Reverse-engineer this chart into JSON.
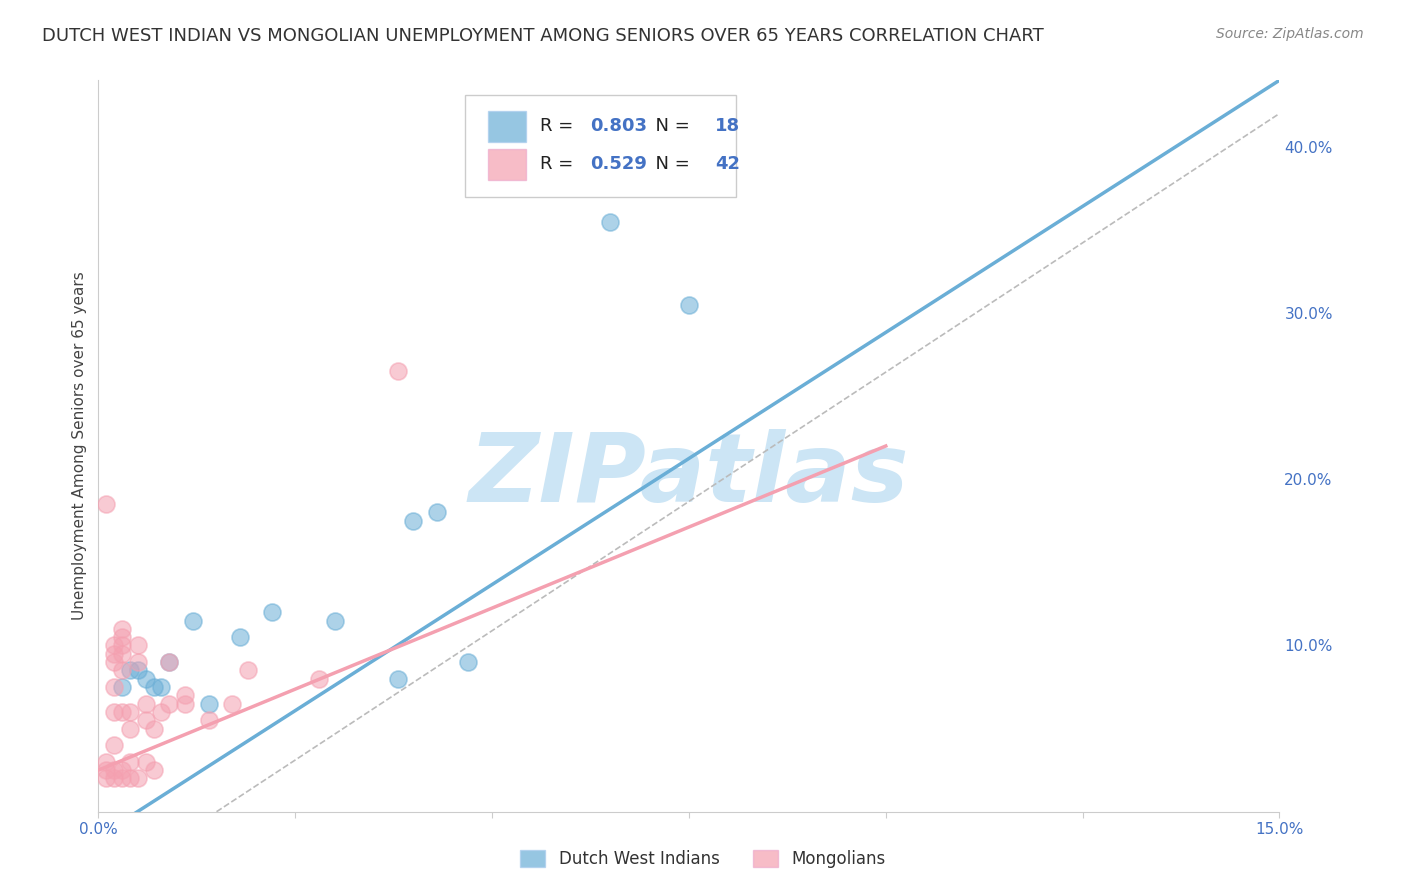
{
  "title": "DUTCH WEST INDIAN VS MONGOLIAN UNEMPLOYMENT AMONG SENIORS OVER 65 YEARS CORRELATION CHART",
  "source": "Source: ZipAtlas.com",
  "ylabel": "Unemployment Among Seniors over 65 years",
  "xlim": [
    0.0,
    0.15
  ],
  "ylim": [
    0.0,
    0.44
  ],
  "xticks": [
    0.0,
    0.025,
    0.05,
    0.075,
    0.1,
    0.125,
    0.15
  ],
  "xtick_labels": [
    "0.0%",
    "",
    "",
    "",
    "",
    "",
    "15.0%"
  ],
  "yticks_right": [
    0.1,
    0.2,
    0.3,
    0.4
  ],
  "ytick_labels_right": [
    "10.0%",
    "20.0%",
    "30.0%",
    "40.0%"
  ],
  "blue_color": "#6aaed6",
  "pink_color": "#f4a0b0",
  "blue_edge_color": "#5090c0",
  "pink_edge_color": "#e07090",
  "blue_label": "Dutch West Indians",
  "pink_label": "Mongolians",
  "R_blue": "0.803",
  "N_blue": "18",
  "R_pink": "0.529",
  "N_pink": "42",
  "blue_scatter": [
    [
      0.003,
      0.075
    ],
    [
      0.004,
      0.085
    ],
    [
      0.005,
      0.085
    ],
    [
      0.006,
      0.08
    ],
    [
      0.007,
      0.075
    ],
    [
      0.008,
      0.075
    ],
    [
      0.009,
      0.09
    ],
    [
      0.012,
      0.115
    ],
    [
      0.014,
      0.065
    ],
    [
      0.018,
      0.105
    ],
    [
      0.022,
      0.12
    ],
    [
      0.03,
      0.115
    ],
    [
      0.038,
      0.08
    ],
    [
      0.04,
      0.175
    ],
    [
      0.043,
      0.18
    ],
    [
      0.047,
      0.09
    ],
    [
      0.065,
      0.355
    ],
    [
      0.075,
      0.305
    ]
  ],
  "pink_scatter": [
    [
      0.001,
      0.02
    ],
    [
      0.001,
      0.025
    ],
    [
      0.001,
      0.03
    ],
    [
      0.001,
      0.185
    ],
    [
      0.002,
      0.02
    ],
    [
      0.002,
      0.025
    ],
    [
      0.002,
      0.04
    ],
    [
      0.002,
      0.06
    ],
    [
      0.002,
      0.075
    ],
    [
      0.002,
      0.09
    ],
    [
      0.002,
      0.095
    ],
    [
      0.002,
      0.1
    ],
    [
      0.003,
      0.02
    ],
    [
      0.003,
      0.025
    ],
    [
      0.003,
      0.06
    ],
    [
      0.003,
      0.085
    ],
    [
      0.003,
      0.095
    ],
    [
      0.003,
      0.1
    ],
    [
      0.003,
      0.105
    ],
    [
      0.003,
      0.11
    ],
    [
      0.004,
      0.02
    ],
    [
      0.004,
      0.03
    ],
    [
      0.004,
      0.05
    ],
    [
      0.004,
      0.06
    ],
    [
      0.005,
      0.02
    ],
    [
      0.005,
      0.09
    ],
    [
      0.005,
      0.1
    ],
    [
      0.006,
      0.03
    ],
    [
      0.006,
      0.055
    ],
    [
      0.007,
      0.025
    ],
    [
      0.007,
      0.05
    ],
    [
      0.008,
      0.06
    ],
    [
      0.009,
      0.065
    ],
    [
      0.009,
      0.09
    ],
    [
      0.011,
      0.065
    ],
    [
      0.011,
      0.07
    ],
    [
      0.014,
      0.055
    ],
    [
      0.017,
      0.065
    ],
    [
      0.019,
      0.085
    ],
    [
      0.028,
      0.08
    ],
    [
      0.038,
      0.265
    ],
    [
      0.006,
      0.065
    ]
  ],
  "blue_line": [
    0.0,
    -0.015,
    0.15,
    0.44
  ],
  "pink_line": [
    0.0,
    0.025,
    0.1,
    0.22
  ],
  "diag_line": [
    0.015,
    0.0,
    0.15,
    0.42
  ],
  "watermark": "ZIPatlas",
  "watermark_color": "#cce5f5",
  "background_color": "#ffffff",
  "grid_color": "#e0e0e0",
  "title_fontsize": 13,
  "axis_label_fontsize": 11,
  "tick_fontsize": 11,
  "scatter_size": 150,
  "scatter_alpha": 0.55,
  "line_width": 2.5
}
